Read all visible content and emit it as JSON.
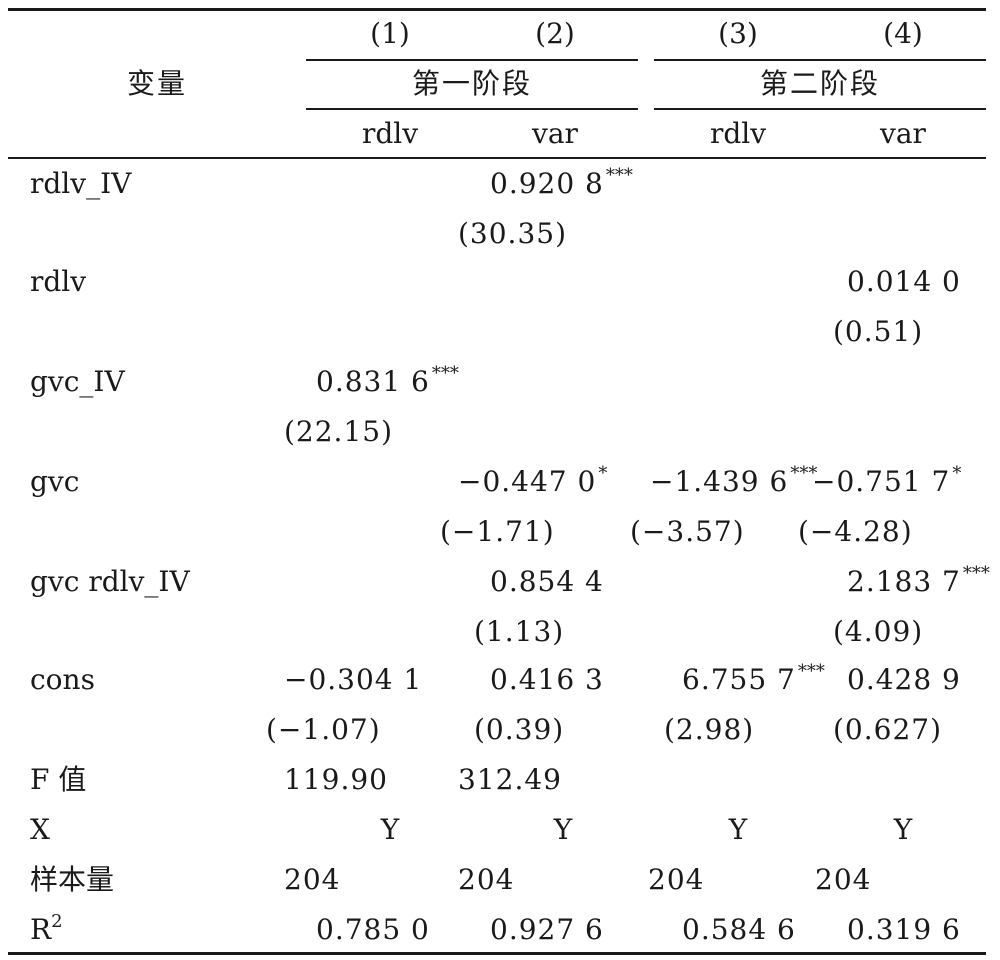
{
  "header": {
    "var_label": "变量",
    "col_numbers": [
      "(1)",
      "(2)",
      "(3)",
      "(4)"
    ],
    "stage1": "第一阶段",
    "stage2": "第二阶段",
    "dep_vars": [
      "rdlv",
      "var",
      "rdlv",
      "var"
    ]
  },
  "rows": [
    {
      "label": "rdlv_IV",
      "coef": [
        "",
        "0.920 8",
        "",
        ""
      ],
      "stars": [
        "",
        "***",
        "",
        ""
      ],
      "t": [
        "",
        "(30.35)",
        "",
        ""
      ]
    },
    {
      "label": "rdlv",
      "coef": [
        "",
        "",
        "",
        "0.014 0"
      ],
      "stars": [
        "",
        "",
        "",
        ""
      ],
      "t": [
        "",
        "",
        "",
        "(0.51)"
      ]
    },
    {
      "label": "gvc_IV",
      "coef": [
        "0.831 6",
        "",
        "",
        ""
      ],
      "stars": [
        "***",
        "",
        "",
        ""
      ],
      "t": [
        "(22.15)",
        "",
        "",
        ""
      ]
    },
    {
      "label": "gvc",
      "coef": [
        "",
        "−0.447 0",
        "−1.439 6",
        "−0.751 7"
      ],
      "stars": [
        "",
        "*",
        "***",
        "*"
      ],
      "t": [
        "",
        "(−1.71)",
        "(−3.57)",
        "(−4.28)"
      ]
    },
    {
      "label": "gvc rdlv_IV",
      "coef": [
        "",
        "0.854 4",
        "",
        "2.183 7"
      ],
      "stars": [
        "",
        "",
        "",
        "***"
      ],
      "t": [
        "",
        "(1.13)",
        "",
        "(4.09)"
      ]
    },
    {
      "label": "cons",
      "coef": [
        "−0.304 1",
        "0.416 3",
        "6.755 7",
        "0.428 9"
      ],
      "stars": [
        "",
        "",
        "***",
        ""
      ],
      "t": [
        "(−1.07)",
        "(0.39)",
        "(2.98)",
        "(0.627)"
      ]
    }
  ],
  "f_row": {
    "label": "F 值",
    "values": [
      "119.90",
      "312.49",
      "",
      ""
    ]
  },
  "x_row": {
    "label": "X",
    "values": [
      "Y",
      "Y",
      "Y",
      "Y"
    ]
  },
  "n_row": {
    "label": "样本量",
    "values": [
      "204",
      "204",
      "204",
      "204"
    ]
  },
  "r2_row": {
    "label": "R",
    "sup": "2",
    "values": [
      "0.785 0",
      "0.927 6",
      "0.584 6",
      "0.319 6"
    ]
  }
}
